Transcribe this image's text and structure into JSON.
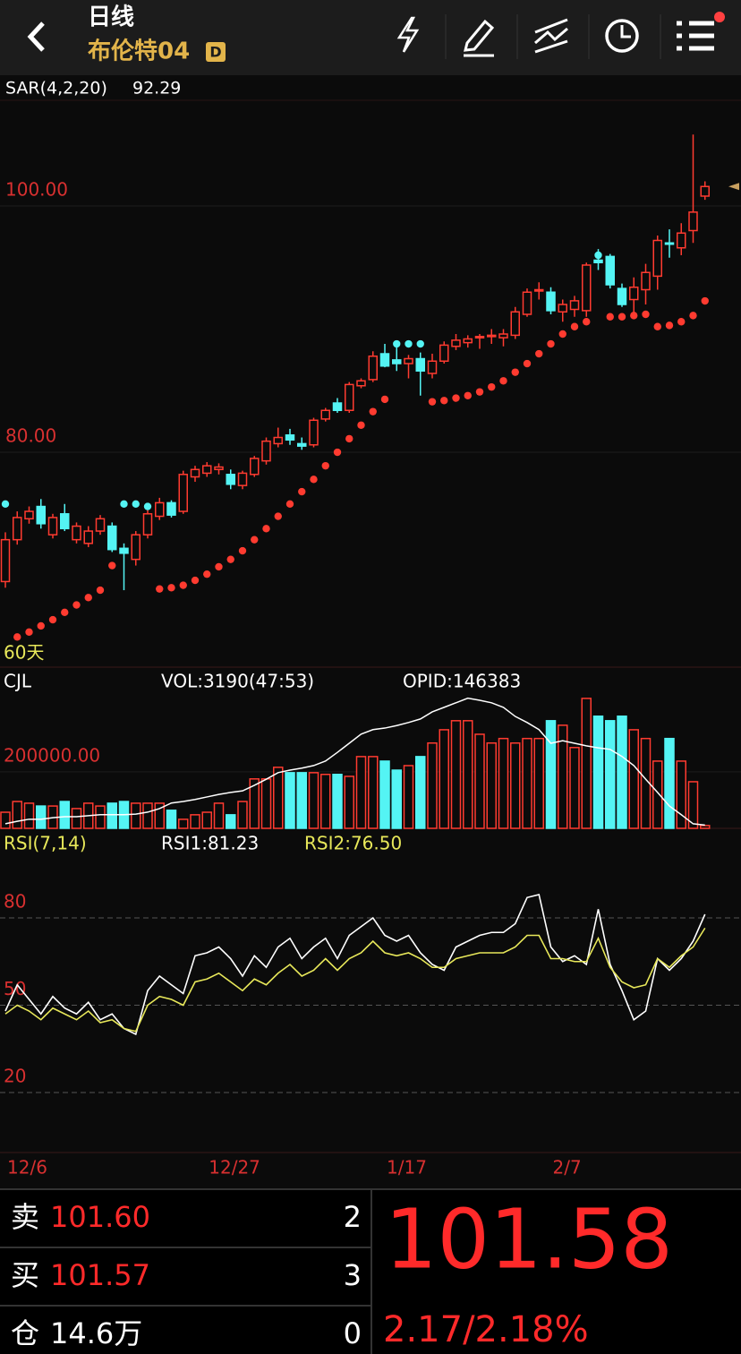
{
  "header": {
    "title": "日线",
    "subtitle": "布伦特04",
    "badge": "D"
  },
  "chart_data": [
    {
      "type": "candlestick",
      "indicator": "SAR(4,2,20)",
      "indicator_value": 92.29,
      "period_label": "60天",
      "up_color": "#ff3b30",
      "down_color": "#54f4f4",
      "marker_color": "#c8a060",
      "ylim": [
        62.55,
        108.58
      ],
      "yticks": [
        {
          "value": 100,
          "label": "100.00"
        },
        {
          "value": 80,
          "label": "80.00"
        }
      ],
      "categories": [
        "12/6",
        null,
        null,
        null,
        null,
        null,
        null,
        null,
        null,
        null,
        null,
        null,
        null,
        null,
        null,
        null,
        null,
        "12/27",
        null,
        null,
        null,
        null,
        null,
        null,
        null,
        null,
        null,
        null,
        null,
        null,
        null,
        null,
        "1/17",
        null,
        null,
        null,
        null,
        null,
        null,
        null,
        null,
        null,
        null,
        null,
        null,
        null,
        "2/7",
        null,
        null,
        null,
        null,
        null,
        null,
        null,
        null,
        null,
        null,
        null,
        null,
        null
      ],
      "open": [
        69.5,
        72.9,
        74.6,
        75.6,
        73.3,
        75.0,
        72.9,
        72.6,
        73.6,
        74.0,
        72.2,
        71.3,
        73.3,
        74.8,
        75.9,
        75.2,
        78.0,
        78.3,
        78.6,
        78.2,
        77.3,
        78.2,
        79.3,
        80.7,
        81.4,
        80.7,
        80.6,
        82.7,
        84.0,
        83.4,
        85.4,
        85.9,
        88.0,
        87.5,
        87.2,
        87.6,
        86.4,
        87.4,
        88.6,
        88.9,
        89.3,
        89.4,
        89.3,
        89.5,
        91.2,
        93.1,
        93.0,
        91.4,
        91.6,
        91.5,
        95.6,
        95.9,
        93.3,
        92.4,
        93.2,
        94.3,
        97.0,
        96.6,
        98.0,
        100.8
      ],
      "high": [
        73.5,
        75.2,
        75.6,
        76.2,
        75.0,
        75.8,
        74.3,
        74.0,
        74.9,
        74.3,
        72.6,
        73.6,
        75.3,
        76.3,
        76.1,
        78.5,
        78.9,
        79.2,
        79.1,
        78.6,
        78.5,
        79.7,
        81.2,
        82.0,
        81.9,
        81.2,
        82.8,
        83.6,
        84.4,
        85.7,
        86.0,
        88.2,
        88.8,
        88.9,
        87.9,
        88.1,
        88.0,
        89.0,
        89.6,
        89.5,
        89.6,
        90.0,
        90.0,
        91.8,
        93.3,
        93.8,
        93.4,
        92.4,
        92.7,
        95.4,
        96.5,
        96.1,
        93.7,
        94.2,
        95.3,
        97.6,
        98.1,
        98.6,
        105.8,
        102.0
      ],
      "low": [
        69.0,
        72.5,
        74.2,
        73.8,
        73.0,
        73.6,
        72.6,
        72.3,
        73.3,
        71.9,
        68.8,
        70.8,
        73.0,
        74.5,
        74.7,
        75.0,
        77.6,
        78.0,
        78.2,
        77.0,
        77.0,
        78.0,
        79.0,
        80.4,
        80.6,
        80.2,
        80.4,
        82.5,
        83.2,
        83.2,
        85.2,
        85.7,
        86.9,
        86.6,
        86.0,
        84.6,
        86.0,
        87.2,
        88.3,
        88.5,
        88.4,
        88.8,
        88.6,
        89.2,
        91.0,
        92.4,
        91.2,
        90.6,
        91.0,
        91.0,
        94.8,
        93.3,
        91.8,
        91.2,
        92.0,
        93.2,
        95.8,
        96.0,
        97.0,
        100.5
      ],
      "close": [
        72.9,
        74.7,
        75.2,
        74.2,
        74.7,
        73.8,
        74.0,
        73.6,
        74.6,
        72.1,
        71.8,
        73.3,
        75.0,
        75.9,
        74.9,
        78.2,
        78.6,
        78.9,
        78.8,
        77.4,
        78.3,
        79.5,
        80.9,
        81.2,
        81.0,
        80.5,
        82.6,
        83.4,
        83.4,
        85.5,
        85.8,
        87.8,
        87.0,
        87.2,
        87.6,
        86.6,
        87.4,
        88.7,
        89.1,
        89.2,
        89.4,
        89.5,
        89.6,
        91.4,
        93.0,
        93.2,
        91.5,
        92.0,
        92.3,
        95.2,
        95.4,
        93.6,
        92.0,
        93.4,
        94.6,
        97.2,
        96.9,
        97.8,
        99.5,
        101.58
      ],
      "sar": [
        75.8,
        65.0,
        65.4,
        65.9,
        66.4,
        67.0,
        67.6,
        68.2,
        68.8,
        70.8,
        75.8,
        75.8,
        75.6,
        68.9,
        69.0,
        69.2,
        69.6,
        70.1,
        70.7,
        71.3,
        72.0,
        72.9,
        73.8,
        74.8,
        75.8,
        76.8,
        77.8,
        78.9,
        80.0,
        81.1,
        82.2,
        83.3,
        84.3,
        88.8,
        88.8,
        88.8,
        84.1,
        84.2,
        84.4,
        84.6,
        84.9,
        85.3,
        85.8,
        86.5,
        87.2,
        88.0,
        88.8,
        89.6,
        90.2,
        90.6,
        96.0,
        91.0,
        91.0,
        91.1,
        91.2,
        90.2,
        90.3,
        90.6,
        91.1,
        92.29
      ]
    },
    {
      "type": "volume",
      "name": "CJL",
      "vol_label": "VOL:3190(47:53)",
      "oi_label": "OPID:146383",
      "oi_color": "#ffffff",
      "ylim": [
        0,
        466000
      ],
      "yticks": [
        {
          "value": 200000,
          "label": "200000.00"
        }
      ],
      "oi_ylim": [
        140000,
        400000
      ],
      "values": [
        57000,
        95000,
        89000,
        79000,
        79000,
        95000,
        70000,
        89000,
        79000,
        89000,
        95000,
        89000,
        89000,
        89000,
        64000,
        32000,
        48000,
        57000,
        89000,
        48000,
        95000,
        175000,
        175000,
        216000,
        197000,
        197000,
        197000,
        191000,
        191000,
        184000,
        254000,
        254000,
        238000,
        206000,
        222000,
        254000,
        302000,
        349000,
        381000,
        381000,
        333000,
        302000,
        318000,
        302000,
        318000,
        318000,
        381000,
        365000,
        286000,
        460000,
        397000,
        381000,
        397000,
        349000,
        318000,
        238000,
        318000,
        238000,
        165000,
        10000
      ],
      "oi": [
        149000,
        154000,
        158000,
        158000,
        161000,
        163000,
        163000,
        165000,
        167000,
        167000,
        167000,
        168000,
        172000,
        179000,
        190000,
        193000,
        197000,
        202000,
        207000,
        211000,
        214000,
        225000,
        237000,
        250000,
        255000,
        259000,
        264000,
        273000,
        290000,
        308000,
        326000,
        335000,
        338000,
        343000,
        349000,
        356000,
        370000,
        379000,
        388000,
        397000,
        393000,
        388000,
        379000,
        361000,
        349000,
        335000,
        308000,
        313000,
        308000,
        303000,
        299000,
        296000,
        282000,
        264000,
        237000,
        211000,
        184000,
        167000,
        149000,
        146383
      ]
    },
    {
      "type": "line",
      "name": "RSI(7,14)",
      "ylim": [
        0,
        100
      ],
      "yticks": [
        20,
        50,
        80
      ],
      "grid": "dashed",
      "series": [
        {
          "label": "RSI1:81.23",
          "color": "#ffffff",
          "values": [
            48,
            57,
            52,
            47,
            53,
            49,
            47,
            51,
            45,
            47,
            42,
            40,
            55,
            60,
            57,
            54,
            67,
            68,
            70,
            66,
            60,
            67,
            63,
            70,
            73,
            66,
            70,
            73,
            66,
            74,
            77,
            80,
            74,
            72,
            74,
            68,
            64,
            62,
            70,
            72,
            74,
            75,
            75,
            78,
            87,
            88,
            70,
            65,
            67,
            64,
            83,
            64,
            55,
            45,
            48,
            66,
            62,
            66,
            72,
            81.23
          ]
        },
        {
          "label": "RSI2:76.50",
          "color": "#e8e85a",
          "values": [
            47,
            50,
            48,
            45,
            49,
            47,
            45,
            48,
            44,
            45,
            42,
            41,
            50,
            53,
            52,
            50,
            58,
            59,
            61,
            58,
            55,
            59,
            57,
            61,
            64,
            60,
            62,
            66,
            62,
            66,
            68,
            72,
            68,
            67,
            68,
            66,
            63,
            63,
            66,
            67,
            68,
            68,
            68,
            70,
            74,
            74,
            66,
            66,
            65,
            65,
            73,
            63,
            58,
            56,
            57,
            66,
            63,
            67,
            70,
            76.5
          ]
        }
      ]
    }
  ],
  "quote": {
    "rows": [
      {
        "label": "卖",
        "price": "101.60",
        "qty": "2"
      },
      {
        "label": "买",
        "price": "101.57",
        "qty": "3"
      },
      {
        "label": "仓",
        "price": "14.6万",
        "qty": "0"
      }
    ],
    "last": "101.58",
    "change": "2.17/2.18%"
  }
}
